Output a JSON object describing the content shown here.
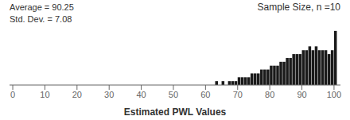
{
  "chart_data": {
    "type": "histogram",
    "annotations": [
      "Average = 90.25",
      "Std. Dev. = 7.08",
      "Sample Size, n =10"
    ],
    "xlabel": "Estimated PWL Values",
    "bins": [
      0,
      1,
      2,
      3,
      4,
      5,
      6,
      7,
      8,
      9,
      10,
      11,
      12,
      13,
      14,
      15,
      16,
      17,
      18,
      19,
      20,
      21,
      22,
      23,
      24,
      25,
      26,
      27,
      28,
      29,
      30,
      31,
      32,
      33,
      34,
      35,
      36,
      37,
      38,
      39,
      40,
      41,
      42,
      43,
      44,
      45,
      46,
      47,
      48,
      49,
      50,
      51,
      52,
      53,
      54,
      55,
      56,
      57,
      58,
      59,
      60,
      61,
      62,
      63,
      64,
      65,
      66,
      67,
      68,
      69,
      70,
      71,
      72,
      73,
      74,
      75,
      76,
      77,
      78,
      79,
      80,
      81,
      82,
      83,
      84,
      85,
      86,
      87,
      88,
      89,
      90,
      91,
      92,
      93,
      94,
      95,
      96,
      97,
      98,
      99,
      100,
      101
    ],
    "values": [
      0,
      0,
      0,
      0,
      0,
      0,
      0,
      0,
      0,
      0,
      0,
      0,
      0,
      0,
      0,
      0,
      0,
      0,
      0,
      0,
      0,
      0,
      0,
      0,
      0,
      0,
      0,
      0,
      0,
      0,
      0,
      0,
      0,
      0,
      0,
      0,
      0,
      0,
      0,
      0,
      0,
      0,
      0,
      0,
      0,
      0,
      0,
      0,
      0,
      0,
      0,
      0,
      0,
      0,
      0,
      0,
      0,
      0,
      0,
      0,
      0,
      0,
      0,
      1,
      0,
      1,
      0,
      1,
      1,
      1,
      2,
      2,
      2,
      2,
      3,
      3,
      3,
      4,
      4,
      4,
      5,
      5,
      5,
      6,
      6,
      7,
      7,
      8,
      8,
      8,
      9,
      9,
      10,
      9,
      10,
      9,
      9,
      9,
      8,
      9,
      14
    ],
    "color": "#1a1a1a",
    "xlim": [
      -1,
      102
    ],
    "xticks": [
      0,
      10,
      20,
      30,
      40,
      50,
      60,
      70,
      80,
      90,
      100
    ],
    "ylim": [
      0,
      15
    ],
    "tick_labels": "x",
    "grid": false
  }
}
